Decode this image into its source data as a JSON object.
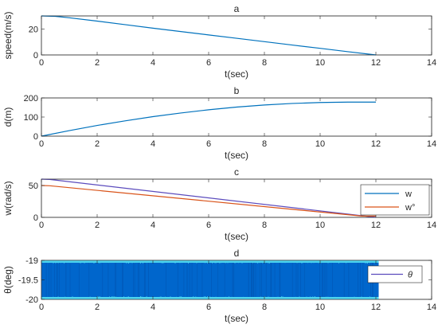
{
  "colors": {
    "line_blue": "#0072BD",
    "line_orange": "#D95319",
    "line_purple": "#5B4BBD",
    "noise_blue": "#0066CC",
    "noise_cyan": "#4DD5F0",
    "axis": "#262626"
  },
  "chart_data": [
    {
      "type": "line",
      "title": "a",
      "xlabel": "t(sec)",
      "ylabel": "speed(m/s)",
      "xlim": [
        0,
        14
      ],
      "ylim": [
        0,
        30
      ],
      "xticks": [
        "0",
        "2",
        "4",
        "6",
        "8",
        "10",
        "12",
        "14"
      ],
      "yticks": [
        "0",
        "20"
      ],
      "ytick_values": [
        0,
        20
      ],
      "grid": false,
      "series": [
        {
          "x": [
            0,
            0.5,
            1,
            2,
            3,
            4,
            5,
            6,
            7,
            8,
            9,
            10,
            11,
            12
          ],
          "y": [
            30,
            29.7,
            28.6,
            26.0,
            23.3,
            20.6,
            18.0,
            15.4,
            12.8,
            10.2,
            7.6,
            5.1,
            2.5,
            0
          ]
        }
      ]
    },
    {
      "type": "line",
      "title": "b",
      "xlabel": "t(sec)",
      "ylabel": "d(m)",
      "xlim": [
        0,
        14
      ],
      "ylim": [
        0,
        200
      ],
      "xticks": [
        "0",
        "2",
        "4",
        "6",
        "8",
        "10",
        "12",
        "14"
      ],
      "yticks": [
        "0",
        "100",
        "200"
      ],
      "ytick_values": [
        0,
        100,
        200
      ],
      "grid": false,
      "series": [
        {
          "x": [
            0,
            1,
            2,
            3,
            4,
            5,
            6,
            7,
            8,
            9,
            10,
            11,
            12
          ],
          "y": [
            0,
            29,
            56,
            80,
            102,
            121,
            138,
            152,
            163,
            171,
            176,
            178,
            178
          ]
        }
      ]
    },
    {
      "type": "line",
      "title": "c",
      "xlabel": "t(sec)",
      "ylabel": "w(rad/s)",
      "xlim": [
        0,
        14
      ],
      "ylim": [
        0,
        60
      ],
      "xticks": [
        "0",
        "2",
        "4",
        "6",
        "8",
        "10",
        "12",
        "14"
      ],
      "yticks": [
        "0",
        "50"
      ],
      "ytick_values": [
        0,
        50
      ],
      "grid": false,
      "legend": "right",
      "series": [
        {
          "name": "w",
          "x": [
            0,
            0.3,
            12
          ],
          "y": [
            60,
            59.5,
            0
          ]
        },
        {
          "name": "w°",
          "x": [
            0,
            0.3,
            11.5,
            12
          ],
          "y": [
            50,
            49.6,
            2,
            2
          ]
        }
      ]
    },
    {
      "type": "area",
      "title": "d",
      "xlabel": "t(sec)",
      "ylabel": "θ(deg)",
      "xlim": [
        0,
        14
      ],
      "ylim": [
        -20,
        -19
      ],
      "xticks": [
        "0",
        "2",
        "4",
        "6",
        "8",
        "10",
        "12",
        "14"
      ],
      "yticks": [
        "-20",
        "-19.5",
        "-19"
      ],
      "ytick_values": [
        -20,
        -19.5,
        -19
      ],
      "grid": false,
      "legend": "top-right",
      "series": [
        {
          "name": "θ",
          "x": [
            0,
            12.1
          ],
          "y_min": -20,
          "y_max": -19
        }
      ]
    }
  ]
}
